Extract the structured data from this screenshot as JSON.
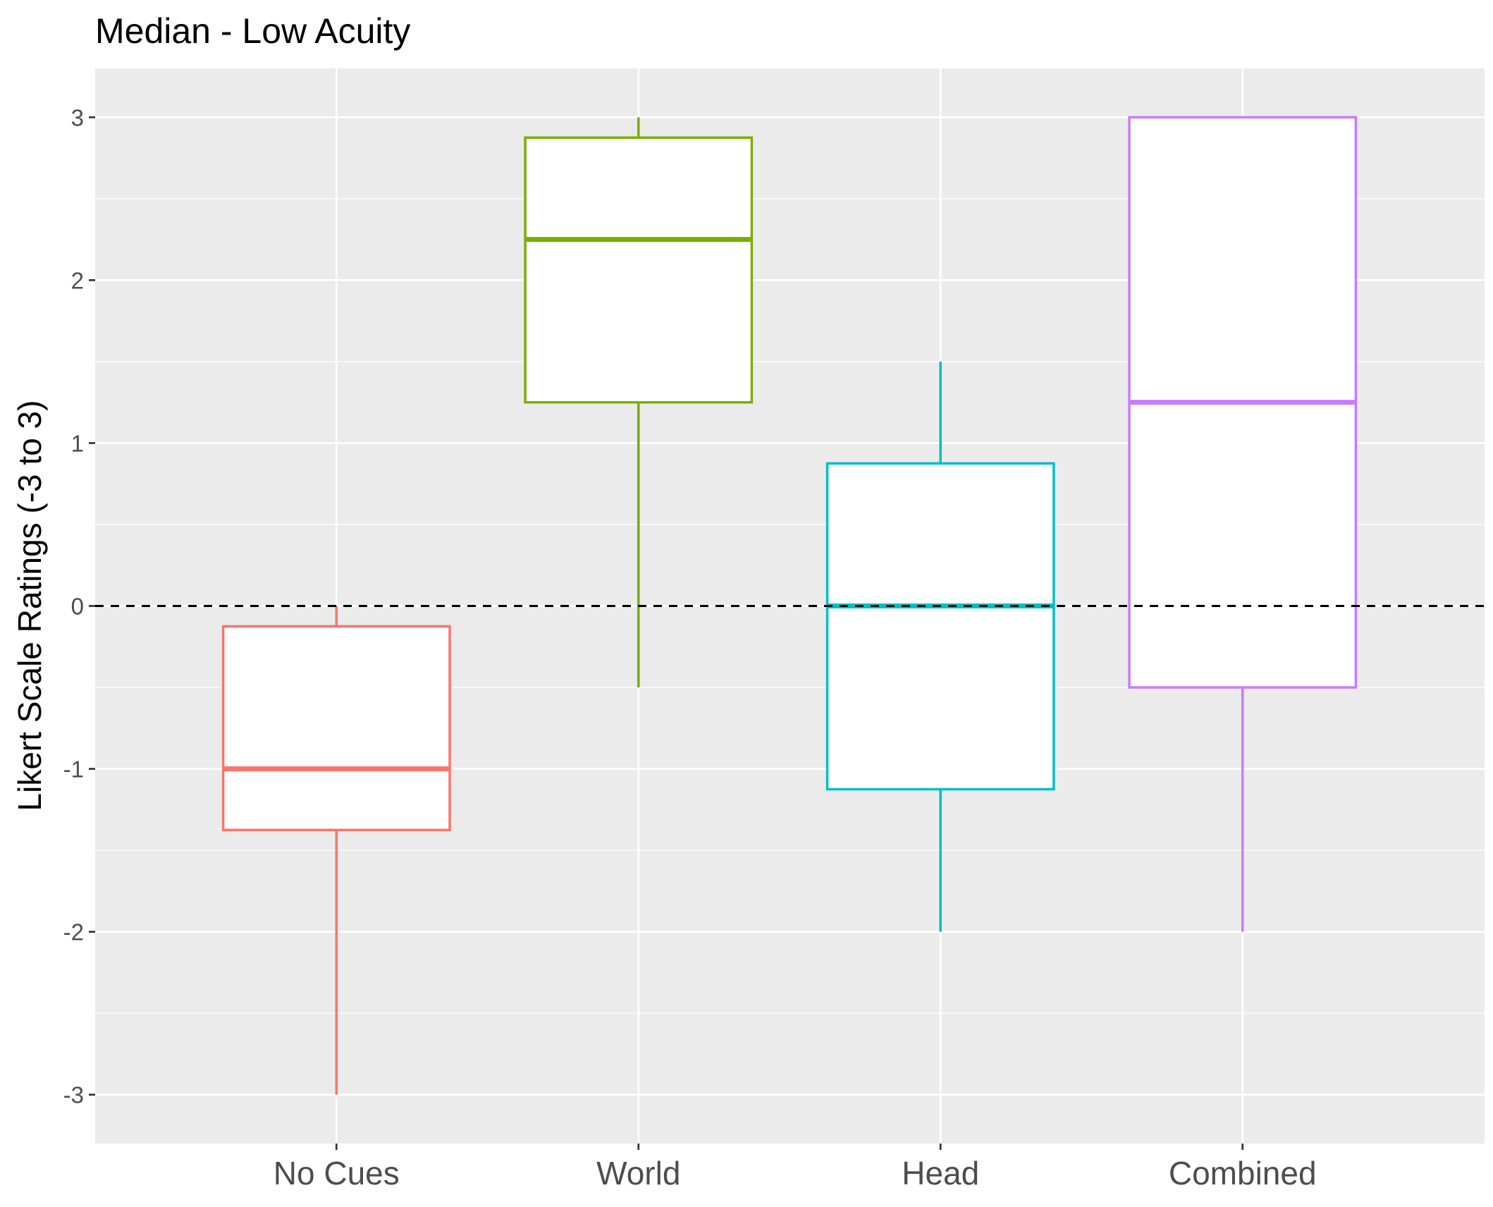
{
  "chart_data": {
    "type": "boxplot",
    "title": "Median - Low Acuity",
    "xlabel": "",
    "ylabel": "Likert Scale Ratings (-3 to 3)",
    "ylim": [
      -3.3,
      3.3
    ],
    "yticks": [
      -3,
      -2,
      -1,
      0,
      1,
      2,
      3
    ],
    "ytick_labels": [
      "-3",
      "-2",
      "-1",
      "0",
      "1",
      "2",
      "3"
    ],
    "grid": true,
    "legend": "none",
    "reference_line": {
      "y": 0,
      "style": "dashed",
      "color": "#000000"
    },
    "panel_background": "#ebebeb",
    "categories": [
      "No Cues",
      "World",
      "Head",
      "Combined"
    ],
    "series": [
      {
        "category": "No Cues",
        "color": "#F8766D",
        "min": -3,
        "q1": -1.375,
        "median": -1,
        "q3": -0.125,
        "max": 0
      },
      {
        "category": "World",
        "color": "#7CAE00",
        "min": -0.5,
        "q1": 1.25,
        "median": 2.25,
        "q3": 2.875,
        "max": 3
      },
      {
        "category": "Head",
        "color": "#00BFC4",
        "min": -2,
        "q1": -1.125,
        "median": 0,
        "q3": 0.875,
        "max": 1.5
      },
      {
        "category": "Combined",
        "color": "#C77CFF",
        "min": -2,
        "q1": -0.5,
        "median": 1.25,
        "q3": 3,
        "max": 3
      }
    ]
  }
}
